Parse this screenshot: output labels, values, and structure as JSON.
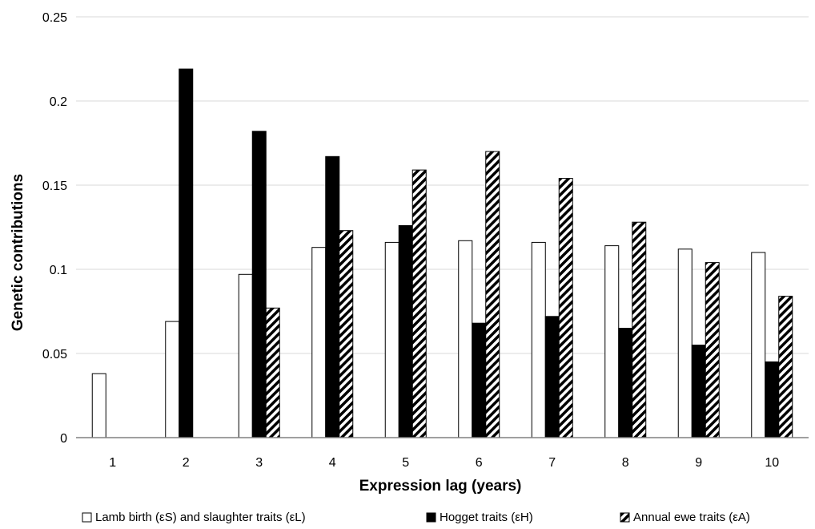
{
  "chart_data": {
    "type": "bar",
    "title": "",
    "xlabel": "Expression lag (years)",
    "ylabel": "Genetic contributions",
    "ylim": [
      0,
      0.25
    ],
    "yticks": [
      "0",
      "0.05",
      "0.1",
      "0.15",
      "0.2",
      "0.25"
    ],
    "grid": "horizontal",
    "legend_position": "bottom",
    "categories": [
      "1",
      "2",
      "3",
      "4",
      "5",
      "6",
      "7",
      "8",
      "9",
      "10"
    ],
    "series": [
      {
        "name": "Lamb birth (εS) and slaughter traits (εL)",
        "style": "white",
        "values": [
          0.038,
          0.069,
          0.097,
          0.113,
          0.116,
          0.117,
          0.116,
          0.114,
          0.112,
          0.11
        ]
      },
      {
        "name": "Hogget traits (εH)",
        "style": "black",
        "values": [
          null,
          0.219,
          0.182,
          0.167,
          0.126,
          0.068,
          0.072,
          0.065,
          0.055,
          0.045
        ]
      },
      {
        "name": "Annual ewe traits (εA)",
        "style": "hatched",
        "values": [
          null,
          null,
          0.077,
          0.123,
          0.159,
          0.17,
          0.154,
          0.128,
          0.104,
          0.084
        ]
      }
    ],
    "colors": {
      "fill_white": "#ffffff",
      "fill_black": "#000000",
      "stroke": "#000000",
      "grid": "#d9d9d9",
      "axis": "#808080"
    }
  }
}
